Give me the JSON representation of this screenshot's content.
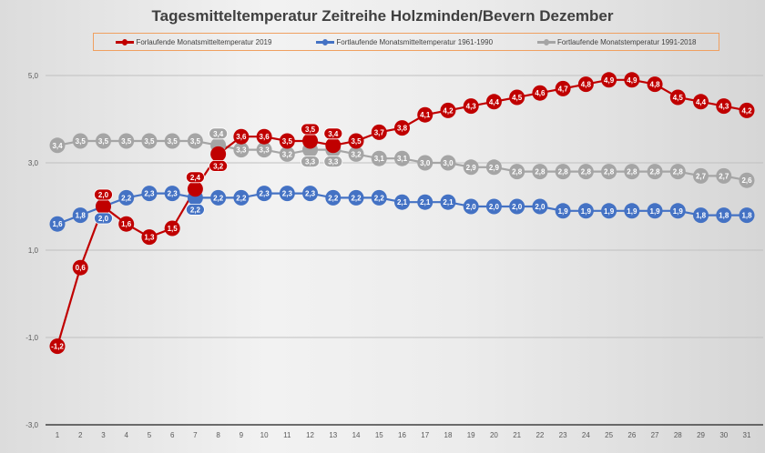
{
  "chart_data": {
    "type": "line",
    "title": "Tagesmitteltemperatur Zeitreihe Holzminden/Bevern Dezember",
    "xlabel": "",
    "ylabel": "",
    "x": [
      1,
      2,
      3,
      4,
      5,
      6,
      7,
      8,
      9,
      10,
      11,
      12,
      13,
      14,
      15,
      16,
      17,
      18,
      19,
      20,
      21,
      22,
      23,
      24,
      25,
      26,
      27,
      28,
      29,
      30,
      31
    ],
    "ylim": [
      -3.0,
      5.0
    ],
    "yticks": [
      "5,0",
      "3,0",
      "1,0",
      "-1,0",
      "-3,0"
    ],
    "ytick_values": [
      5,
      3,
      1,
      -1,
      -3
    ],
    "grid": true,
    "legend_position": "top",
    "series": [
      {
        "name": "Forlaufende Monatsmitteltemperatur 2019",
        "color": "#c00000",
        "values": [
          -1.2,
          0.6,
          2.0,
          1.6,
          1.3,
          1.5,
          2.4,
          3.2,
          3.6,
          3.6,
          3.5,
          3.5,
          3.4,
          3.5,
          3.7,
          3.8,
          4.1,
          4.2,
          4.3,
          4.4,
          4.5,
          4.6,
          4.7,
          4.8,
          4.9,
          4.9,
          4.8,
          4.5,
          4.4,
          4.3,
          4.2
        ]
      },
      {
        "name": "Fortlaufende Monatsmitteltemperatur 1961-1990",
        "color": "#4472c4",
        "values": [
          1.6,
          1.8,
          2.0,
          2.2,
          2.3,
          2.3,
          2.2,
          2.2,
          2.2,
          2.3,
          2.3,
          2.3,
          2.2,
          2.2,
          2.2,
          2.1,
          2.1,
          2.1,
          2.0,
          2.0,
          2.0,
          2.0,
          1.9,
          1.9,
          1.9,
          1.9,
          1.9,
          1.9,
          1.8,
          1.8,
          1.8
        ]
      },
      {
        "name": "Fortlaufende Monatstemperatur 1991-2018",
        "color": "#a5a5a5",
        "values": [
          3.4,
          3.5,
          3.5,
          3.5,
          3.5,
          3.5,
          3.5,
          3.4,
          3.3,
          3.3,
          3.2,
          3.3,
          3.3,
          3.2,
          3.1,
          3.1,
          3.0,
          3.0,
          2.9,
          2.9,
          2.8,
          2.8,
          2.8,
          2.8,
          2.8,
          2.8,
          2.8,
          2.8,
          2.7,
          2.7,
          2.6
        ]
      }
    ]
  }
}
